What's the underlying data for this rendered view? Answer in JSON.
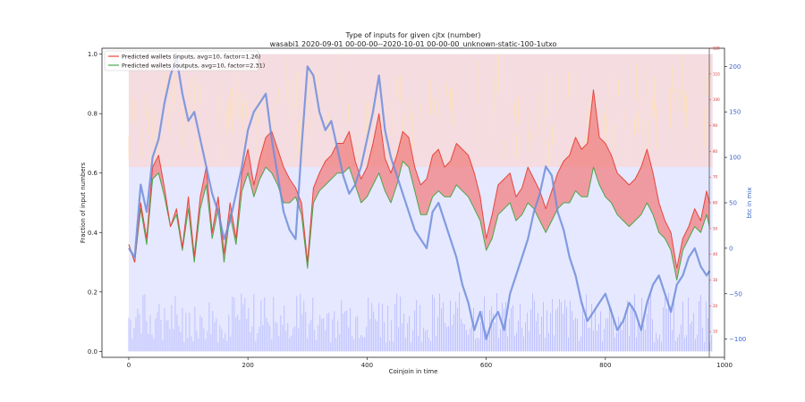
{
  "chart_data": {
    "type": "line",
    "title": "Type of inputs for given cjtx (number)",
    "subtitle": "wasabi1 2020-09-01 00-00-00--2020-10-01 00-00-00_unknown-static-100-1utxo",
    "xlabel": "Coinjoin in time",
    "ylabel": "Fraction of input numbers",
    "ylabel_right": "btc in mix",
    "xlim": [
      -45,
      1000
    ],
    "ylim": [
      -0.02,
      1.02
    ],
    "xticks": [
      "0",
      "200",
      "400",
      "600",
      "800",
      "1000"
    ],
    "yticks": [
      "0.0",
      "0.2",
      "0.4",
      "0.6",
      "0.8",
      "1.0"
    ],
    "y2_red_ticks": [
      "10",
      "20",
      "30",
      "40",
      "50",
      "60",
      "70",
      "80",
      "90",
      "100",
      "110",
      "120"
    ],
    "y2_red_lim": [
      0,
      120
    ],
    "y2_blue_ticks": [
      "−100",
      "−50",
      "0",
      "50",
      "100",
      "150",
      "200"
    ],
    "y2_blue_lim": [
      -120,
      220
    ],
    "grid": false,
    "legend_position": "top-left",
    "colors": {
      "inputs_line": "#e8453c",
      "outputs_line": "#4aa64a",
      "fill_between": "#f08080",
      "btc_line": "#6f8ddb",
      "background_bars_low": "#b3b7ff",
      "background_bars_mid": "#e6e8ff",
      "background_bars_high": "#f9d7d3",
      "background_bars_orange": "#ffe2b3",
      "right_axis_red": "#d62728",
      "right_axis_blue": "#3e66c6"
    },
    "series": [
      {
        "name": "Predicted wallets (inputs, avg=10, factor=1.26)",
        "color": "#e8453c",
        "x": [
          0,
          10,
          20,
          30,
          40,
          50,
          60,
          70,
          80,
          90,
          100,
          110,
          120,
          130,
          140,
          150,
          160,
          170,
          180,
          190,
          200,
          210,
          220,
          230,
          240,
          250,
          260,
          270,
          280,
          290,
          300,
          310,
          320,
          330,
          340,
          350,
          360,
          370,
          380,
          390,
          400,
          410,
          420,
          430,
          440,
          450,
          460,
          470,
          480,
          490,
          500,
          510,
          520,
          530,
          540,
          550,
          560,
          570,
          580,
          590,
          600,
          610,
          620,
          630,
          640,
          650,
          660,
          670,
          680,
          690,
          700,
          710,
          720,
          730,
          740,
          750,
          760,
          770,
          780,
          790,
          800,
          810,
          820,
          830,
          840,
          850,
          860,
          870,
          880,
          890,
          900,
          910,
          920,
          930,
          940,
          950,
          960,
          970,
          975
        ],
        "values": [
          0.36,
          0.3,
          0.5,
          0.38,
          0.62,
          0.66,
          0.55,
          0.42,
          0.48,
          0.35,
          0.52,
          0.32,
          0.52,
          0.62,
          0.4,
          0.52,
          0.33,
          0.5,
          0.38,
          0.6,
          0.68,
          0.56,
          0.65,
          0.72,
          0.74,
          0.68,
          0.62,
          0.58,
          0.55,
          0.5,
          0.3,
          0.55,
          0.6,
          0.64,
          0.66,
          0.7,
          0.7,
          0.74,
          0.64,
          0.58,
          0.62,
          0.7,
          0.8,
          0.65,
          0.6,
          0.66,
          0.74,
          0.72,
          0.62,
          0.56,
          0.58,
          0.66,
          0.68,
          0.62,
          0.64,
          0.7,
          0.68,
          0.66,
          0.6,
          0.52,
          0.38,
          0.46,
          0.56,
          0.58,
          0.6,
          0.52,
          0.55,
          0.62,
          0.58,
          0.54,
          0.48,
          0.54,
          0.6,
          0.64,
          0.66,
          0.72,
          0.68,
          0.7,
          0.88,
          0.72,
          0.7,
          0.66,
          0.6,
          0.58,
          0.56,
          0.58,
          0.62,
          0.68,
          0.6,
          0.5,
          0.44,
          0.4,
          0.28,
          0.38,
          0.42,
          0.48,
          0.44,
          0.54,
          0.5
        ]
      },
      {
        "name": "Predicted wallets (outputs, avg=10, factor=2.31)",
        "color": "#4aa64a",
        "x": [
          0,
          10,
          20,
          30,
          40,
          50,
          60,
          70,
          80,
          90,
          100,
          110,
          120,
          130,
          140,
          150,
          160,
          170,
          180,
          190,
          200,
          210,
          220,
          230,
          240,
          250,
          260,
          270,
          280,
          290,
          300,
          310,
          320,
          330,
          340,
          350,
          360,
          370,
          380,
          390,
          400,
          410,
          420,
          430,
          440,
          450,
          460,
          470,
          480,
          490,
          500,
          510,
          520,
          530,
          540,
          550,
          560,
          570,
          580,
          590,
          600,
          610,
          620,
          630,
          640,
          650,
          660,
          670,
          680,
          690,
          700,
          710,
          720,
          730,
          740,
          750,
          760,
          770,
          780,
          790,
          800,
          810,
          820,
          830,
          840,
          850,
          860,
          870,
          880,
          890,
          900,
          910,
          920,
          930,
          940,
          950,
          960,
          970,
          975
        ],
        "values": [
          0.36,
          0.3,
          0.48,
          0.36,
          0.58,
          0.6,
          0.52,
          0.42,
          0.46,
          0.34,
          0.48,
          0.3,
          0.48,
          0.56,
          0.38,
          0.48,
          0.3,
          0.46,
          0.36,
          0.54,
          0.6,
          0.52,
          0.58,
          0.62,
          0.6,
          0.56,
          0.5,
          0.5,
          0.52,
          0.46,
          0.28,
          0.5,
          0.54,
          0.56,
          0.58,
          0.6,
          0.6,
          0.62,
          0.56,
          0.5,
          0.52,
          0.56,
          0.6,
          0.54,
          0.5,
          0.56,
          0.64,
          0.62,
          0.54,
          0.46,
          0.46,
          0.52,
          0.54,
          0.52,
          0.52,
          0.56,
          0.54,
          0.52,
          0.48,
          0.44,
          0.34,
          0.38,
          0.46,
          0.48,
          0.5,
          0.44,
          0.46,
          0.5,
          0.48,
          0.44,
          0.4,
          0.44,
          0.48,
          0.5,
          0.5,
          0.54,
          0.52,
          0.52,
          0.62,
          0.56,
          0.52,
          0.5,
          0.46,
          0.44,
          0.42,
          0.44,
          0.46,
          0.5,
          0.46,
          0.4,
          0.38,
          0.34,
          0.24,
          0.34,
          0.38,
          0.42,
          0.4,
          0.46,
          0.42
        ]
      },
      {
        "name": "btc in mix",
        "color": "#6f8ddb",
        "axis": "right",
        "x": [
          0,
          10,
          20,
          30,
          40,
          50,
          60,
          70,
          80,
          90,
          100,
          110,
          120,
          130,
          140,
          150,
          160,
          170,
          180,
          190,
          200,
          210,
          220,
          230,
          240,
          250,
          260,
          270,
          280,
          290,
          300,
          310,
          320,
          330,
          340,
          350,
          360,
          370,
          380,
          390,
          400,
          410,
          420,
          430,
          440,
          450,
          460,
          470,
          480,
          490,
          500,
          510,
          520,
          530,
          540,
          550,
          560,
          570,
          580,
          590,
          600,
          610,
          620,
          630,
          640,
          650,
          660,
          670,
          680,
          690,
          700,
          710,
          720,
          730,
          740,
          750,
          760,
          770,
          780,
          790,
          800,
          810,
          820,
          830,
          840,
          850,
          860,
          870,
          880,
          890,
          900,
          910,
          920,
          930,
          940,
          950,
          960,
          970,
          975
        ],
        "values": [
          0,
          -10,
          70,
          40,
          100,
          120,
          160,
          190,
          210,
          170,
          140,
          150,
          120,
          90,
          60,
          40,
          10,
          30,
          60,
          90,
          130,
          150,
          160,
          170,
          120,
          80,
          40,
          20,
          10,
          110,
          200,
          190,
          150,
          130,
          140,
          110,
          80,
          60,
          70,
          90,
          120,
          150,
          190,
          130,
          100,
          80,
          60,
          40,
          20,
          10,
          0,
          40,
          50,
          30,
          10,
          -10,
          -40,
          -60,
          -90,
          -70,
          -100,
          -80,
          -70,
          -90,
          -50,
          -30,
          -10,
          10,
          40,
          60,
          90,
          80,
          40,
          20,
          -10,
          -30,
          -60,
          -80,
          -70,
          -60,
          -50,
          -70,
          -90,
          -80,
          -60,
          -70,
          -90,
          -60,
          -40,
          -30,
          -50,
          -70,
          -40,
          -30,
          -10,
          0,
          -20,
          -30,
          -25
        ]
      }
    ]
  }
}
